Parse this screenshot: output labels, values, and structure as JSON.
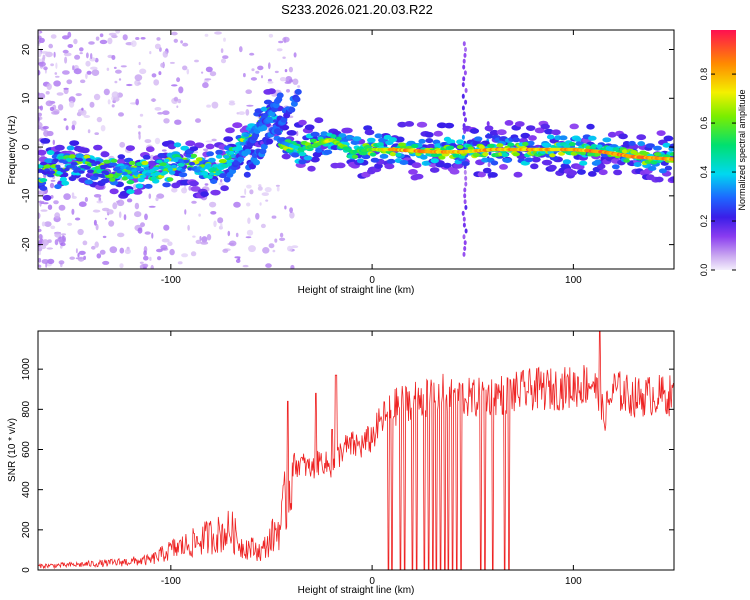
{
  "title": "S233.2026.021.20.03.R22",
  "chart_data": [
    {
      "type": "heatmap",
      "xlabel": "Height of straight line (km)",
      "ylabel": "Frequency (Hz)",
      "xlim": [
        -166,
        150
      ],
      "ylim": [
        -25,
        24
      ],
      "xticks": [
        -100,
        0,
        100
      ],
      "yticks": [
        -20,
        -10,
        0,
        10,
        20
      ],
      "colorbar": {
        "label": "Normalized spectral amplitude",
        "range": [
          0,
          0.98
        ],
        "ticks": [
          0.0,
          0.2,
          0.4,
          0.6,
          0.8
        ]
      },
      "ridge": [
        {
          "x": -166,
          "y": -5,
          "amp": 0.25
        },
        {
          "x": -150,
          "y": -3.5,
          "amp": 0.3
        },
        {
          "x": -135,
          "y": -4.5,
          "amp": 0.25
        },
        {
          "x": -120,
          "y": -5.5,
          "amp": 0.4
        },
        {
          "x": -100,
          "y": -4,
          "amp": 0.45
        },
        {
          "x": -90,
          "y": -3,
          "amp": 0.3
        },
        {
          "x": -80,
          "y": -5.5,
          "amp": 0.5
        },
        {
          "x": -70,
          "y": -1.5,
          "amp": 0.45
        },
        {
          "x": -60,
          "y": 3,
          "amp": 0.35
        },
        {
          "x": -50,
          "y": 8,
          "amp": 0.25
        },
        {
          "x": -45,
          "y": 1,
          "amp": 0.3
        },
        {
          "x": -35,
          "y": -0.5,
          "amp": 0.55
        },
        {
          "x": -20,
          "y": 1.5,
          "amp": 0.8
        },
        {
          "x": -10,
          "y": -1,
          "amp": 0.55
        },
        {
          "x": 0,
          "y": -0.5,
          "amp": 0.7
        },
        {
          "x": 10,
          "y": -0.5,
          "amp": 0.9
        },
        {
          "x": 30,
          "y": -1,
          "amp": 0.92
        },
        {
          "x": 45,
          "y": -1,
          "amp": 0.85
        },
        {
          "x": 60,
          "y": -0.5,
          "amp": 0.9
        },
        {
          "x": 80,
          "y": -0.5,
          "amp": 0.92
        },
        {
          "x": 100,
          "y": -0.5,
          "amp": 0.88
        },
        {
          "x": 115,
          "y": -1,
          "amp": 0.95
        },
        {
          "x": 130,
          "y": -2,
          "amp": 0.95
        },
        {
          "x": 150,
          "y": -2.5,
          "amp": 0.9
        }
      ]
    },
    {
      "type": "line",
      "xlabel": "Height of straight line (km)",
      "ylabel": "SNR (10 * v/v)",
      "xlim": [
        -166,
        150
      ],
      "ylim": [
        0,
        1190
      ],
      "xticks": [
        -100,
        0,
        100
      ],
      "yticks": [
        0,
        200,
        400,
        600,
        800,
        1000
      ],
      "color": "#ee2222",
      "series": [
        {
          "name": "SNR",
          "x": [
            -166,
            -150,
            -130,
            -110,
            -100,
            -90,
            -80,
            -75,
            -70,
            -65,
            -60,
            -55,
            -50,
            -45,
            -40,
            -35,
            -30,
            -25,
            -20,
            -15,
            -10,
            -5,
            0,
            5,
            10,
            15,
            20,
            30,
            40,
            50,
            60,
            70,
            80,
            90,
            100,
            110,
            115,
            120,
            130,
            140,
            150
          ],
          "values": [
            20,
            25,
            35,
            50,
            100,
            130,
            170,
            180,
            200,
            120,
            110,
            90,
            160,
            230,
            520,
            530,
            500,
            550,
            500,
            600,
            620,
            620,
            660,
            750,
            800,
            830,
            850,
            870,
            880,
            850,
            870,
            880,
            900,
            900,
            910,
            940,
            760,
            900,
            860,
            870,
            870
          ]
        }
      ],
      "spikes": [
        {
          "x": -42,
          "value": 840
        },
        {
          "x": -28,
          "value": 880
        },
        {
          "x": -20,
          "value": 700
        },
        {
          "x": -18,
          "value": 970
        },
        {
          "x": 113,
          "value": 1190
        }
      ],
      "dropouts": [
        8,
        10,
        14,
        16,
        20,
        22,
        26,
        28,
        30,
        32,
        34,
        36,
        38,
        40,
        42,
        44,
        54,
        56,
        60,
        66,
        68
      ]
    }
  ]
}
